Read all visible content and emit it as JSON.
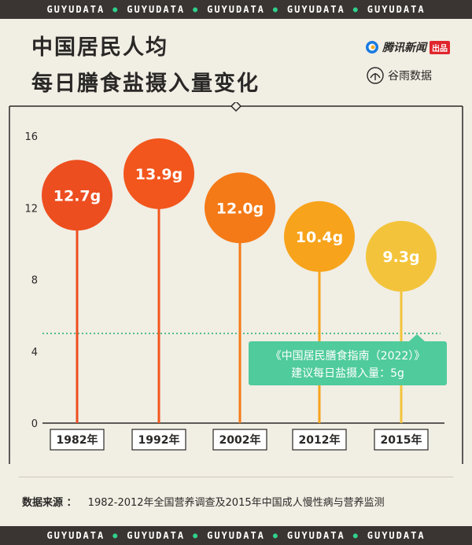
{
  "brand_band": [
    "GUYUDATA",
    "GUYUDATA",
    "GUYUDATA",
    "GUYUDATA",
    "GUYUDATA"
  ],
  "title_line1": "中国居民人均",
  "title_line2": "每日膳食盐摄入量变化",
  "logos": {
    "tencent_name": "腾讯新闻",
    "tencent_tag": "出品",
    "guyu_name": "谷雨数据"
  },
  "colors": {
    "background": "#f1eee4",
    "band": "#3a3532",
    "accent_green": "#2fd08c",
    "callout_bg": "#4fcb9c"
  },
  "chart_data": {
    "type": "lollipop",
    "categories": [
      "1982年",
      "1992年",
      "2002年",
      "2012年",
      "2015年"
    ],
    "values": [
      12.7,
      13.9,
      12.0,
      10.4,
      9.3
    ],
    "value_labels": [
      "12.7g",
      "13.9g",
      "12.0g",
      "10.4g",
      "9.3g"
    ],
    "colors": [
      "#ed4e1f",
      "#f2561c",
      "#f47a17",
      "#f7a31b",
      "#f3c43b"
    ],
    "yticks": [
      "0",
      "4",
      "8",
      "12",
      "16"
    ],
    "ylim": [
      0,
      16
    ],
    "reference": {
      "value": 5,
      "line1": "《中国居民膳食指南（2022）》",
      "line2": "建议每日盐摄入量：5g"
    }
  },
  "source_label": "数据来源 ：",
  "source_text": "1982-2012年全国营养调查及2015年中国成人慢性病与营养监测"
}
